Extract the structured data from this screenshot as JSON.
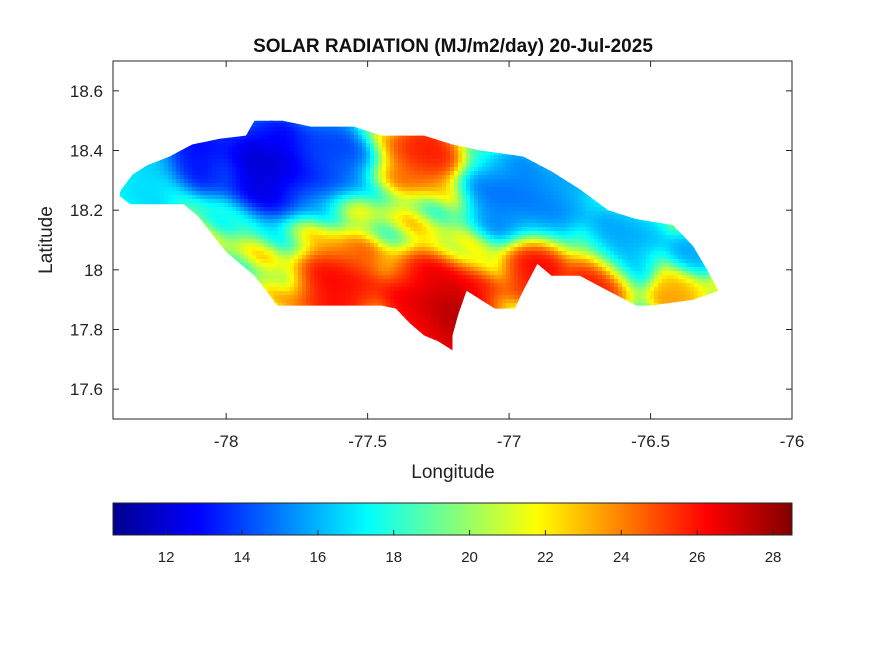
{
  "chart_data": {
    "type": "heatmap",
    "title": "SOLAR RADIATION (MJ/m2/day) 20-Jul-2025",
    "xlabel": "Longitude",
    "ylabel": "Latitude",
    "xlim": [
      -78.4,
      -76
    ],
    "ylim": [
      17.5,
      18.7
    ],
    "x_ticks": [
      -78,
      -77.5,
      -77,
      -76.5,
      -76
    ],
    "x_tick_labels": [
      "-78",
      "-77.5",
      "-77",
      "-76.5",
      "-76"
    ],
    "y_ticks": [
      17.6,
      17.8,
      18,
      18.2,
      18.4,
      18.6
    ],
    "y_tick_labels": [
      "17.6",
      "17.8",
      "18",
      "18.2",
      "18.4",
      "18.6"
    ],
    "grid": false,
    "colormap": "jet",
    "colorbar": {
      "orientation": "horizontal",
      "placement": "bottom",
      "range": [
        10.6,
        28.5
      ],
      "ticks": [
        12,
        14,
        16,
        18,
        20,
        22,
        24,
        26,
        28
      ],
      "tick_labels": [
        "12",
        "14",
        "16",
        "18",
        "20",
        "22",
        "24",
        "26",
        "28"
      ]
    },
    "region_outline": [
      [
        -78.37,
        18.27
      ],
      [
        -78.33,
        18.32
      ],
      [
        -78.28,
        18.35
      ],
      [
        -78.2,
        18.38
      ],
      [
        -78.12,
        18.42
      ],
      [
        -78.02,
        18.44
      ],
      [
        -77.93,
        18.45
      ],
      [
        -77.9,
        18.5
      ],
      [
        -77.8,
        18.5
      ],
      [
        -77.7,
        18.48
      ],
      [
        -77.55,
        18.48
      ],
      [
        -77.45,
        18.45
      ],
      [
        -77.3,
        18.45
      ],
      [
        -77.2,
        18.42
      ],
      [
        -77.1,
        18.4
      ],
      [
        -76.95,
        18.38
      ],
      [
        -76.85,
        18.33
      ],
      [
        -76.75,
        18.27
      ],
      [
        -76.65,
        18.2
      ],
      [
        -76.55,
        18.17
      ],
      [
        -76.42,
        18.15
      ],
      [
        -76.35,
        18.08
      ],
      [
        -76.3,
        18.0
      ],
      [
        -76.26,
        17.93
      ],
      [
        -76.35,
        17.9
      ],
      [
        -76.5,
        17.88
      ],
      [
        -76.55,
        17.88
      ],
      [
        -76.65,
        17.93
      ],
      [
        -76.75,
        17.98
      ],
      [
        -76.85,
        17.98
      ],
      [
        -76.9,
        18.02
      ],
      [
        -76.95,
        17.93
      ],
      [
        -76.98,
        17.87
      ],
      [
        -77.05,
        17.87
      ],
      [
        -77.1,
        17.9
      ],
      [
        -77.15,
        17.93
      ],
      [
        -77.18,
        17.85
      ],
      [
        -77.2,
        17.78
      ],
      [
        -77.2,
        17.73
      ],
      [
        -77.25,
        17.76
      ],
      [
        -77.3,
        17.78
      ],
      [
        -77.35,
        17.82
      ],
      [
        -77.4,
        17.87
      ],
      [
        -77.45,
        17.88
      ],
      [
        -77.55,
        17.88
      ],
      [
        -77.65,
        17.88
      ],
      [
        -77.75,
        17.88
      ],
      [
        -77.82,
        17.88
      ],
      [
        -77.85,
        17.92
      ],
      [
        -77.9,
        17.98
      ],
      [
        -77.95,
        18.02
      ],
      [
        -78.0,
        18.06
      ],
      [
        -78.05,
        18.12
      ],
      [
        -78.1,
        18.18
      ],
      [
        -78.15,
        18.22
      ],
      [
        -78.2,
        18.22
      ],
      [
        -78.28,
        18.22
      ],
      [
        -78.34,
        18.22
      ],
      [
        -78.38,
        18.25
      ]
    ],
    "field_centers": [
      {
        "lon": -77.85,
        "lat": 18.35,
        "value": 11.5,
        "spread": 0.12
      },
      {
        "lon": -78.1,
        "lat": 18.4,
        "value": 12.5,
        "spread": 0.1
      },
      {
        "lon": -77.65,
        "lat": 18.38,
        "value": 13.5,
        "spread": 0.1
      },
      {
        "lon": -78.3,
        "lat": 18.3,
        "value": 16.5,
        "spread": 0.1
      },
      {
        "lon": -77.0,
        "lat": 18.25,
        "value": 14.5,
        "spread": 0.1
      },
      {
        "lon": -76.85,
        "lat": 18.23,
        "value": 15.0,
        "spread": 0.1
      },
      {
        "lon": -76.6,
        "lat": 18.1,
        "value": 15.5,
        "spread": 0.1
      },
      {
        "lon": -76.35,
        "lat": 18.05,
        "value": 15.5,
        "spread": 0.06
      },
      {
        "lon": -77.2,
        "lat": 17.85,
        "value": 28.0,
        "spread": 0.1
      },
      {
        "lon": -77.3,
        "lat": 17.9,
        "value": 27.0,
        "spread": 0.1
      },
      {
        "lon": -77.6,
        "lat": 17.93,
        "value": 26.5,
        "spread": 0.1
      },
      {
        "lon": -77.3,
        "lat": 18.4,
        "value": 26.0,
        "spread": 0.08
      },
      {
        "lon": -76.9,
        "lat": 18.0,
        "value": 26.5,
        "spread": 0.08
      },
      {
        "lon": -76.7,
        "lat": 17.95,
        "value": 26.5,
        "spread": 0.08
      },
      {
        "lon": -76.4,
        "lat": 17.93,
        "value": 23.5,
        "spread": 0.06
      }
    ]
  }
}
